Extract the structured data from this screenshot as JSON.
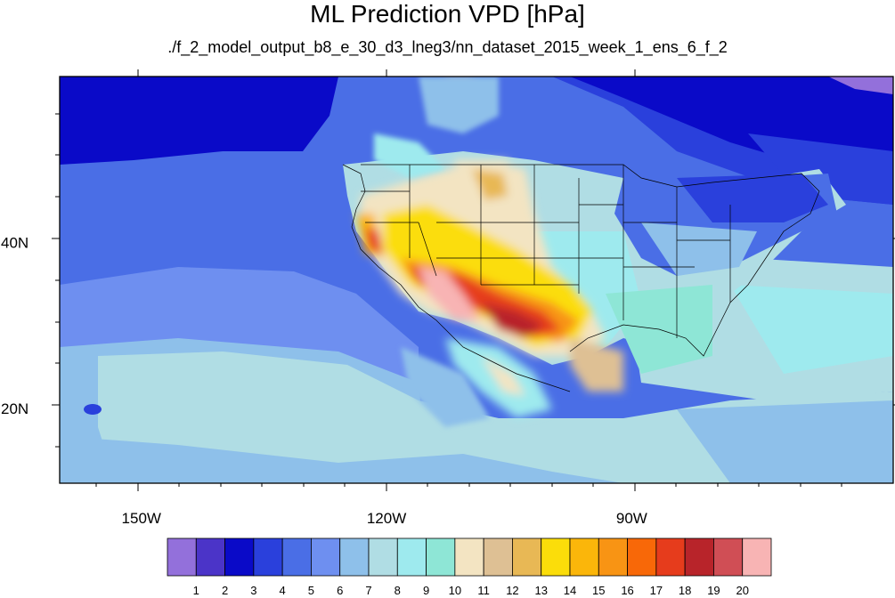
{
  "title": "ML Prediction VPD [hPa]",
  "subtitle": "./f_2_model_output_b8_e_30_d3_lneg3/nn_dataset_2015_week_1_ens_6_f_2",
  "map": {
    "lon_range": [
      -160,
      -58
    ],
    "lat_range": [
      11,
      60
    ],
    "lon_ticks": [
      {
        "label": "150W",
        "lon": -150
      },
      {
        "label": "120W",
        "lon": -120
      },
      {
        "label": "90W",
        "lon": -90
      }
    ],
    "lat_ticks": [
      {
        "label": "40N",
        "lat": 40
      },
      {
        "label": "20N",
        "lat": 20
      }
    ]
  },
  "colorbar": {
    "colors": [
      "#9370db",
      "#4b34c8",
      "#0a0ac8",
      "#2a40dc",
      "#4a6ee6",
      "#6e8ff0",
      "#8ec0ea",
      "#b0dde4",
      "#9eeaee",
      "#8ee6d6",
      "#f3e4c2",
      "#dec094",
      "#e8b855",
      "#fbdd0a",
      "#fbb60a",
      "#f89414",
      "#f86808",
      "#e63c1c",
      "#b8242a",
      "#d04e55",
      "#f8b4b4"
    ],
    "labels": [
      "1",
      "2",
      "3",
      "4",
      "5",
      "6",
      "7",
      "8",
      "9",
      "10",
      "11",
      "12",
      "13",
      "14",
      "15",
      "16",
      "17",
      "18",
      "19",
      "20"
    ]
  }
}
